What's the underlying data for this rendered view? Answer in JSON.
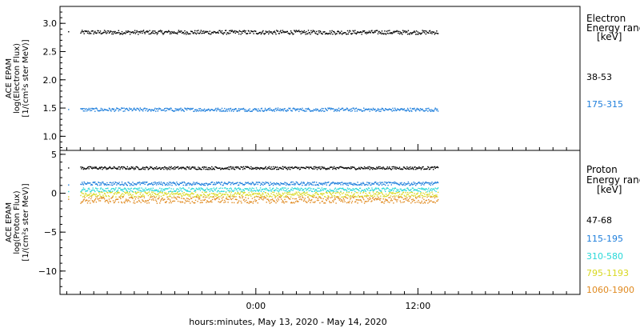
{
  "chart_data": [
    {
      "type": "scatter",
      "panel": "electron",
      "ylabel": [
        "ACE EPAM",
        "log(Electron Flux)",
        "[1/(cm²s ster MeV)]"
      ],
      "ylim": [
        0.75,
        3.3
      ],
      "yticks": [
        1.0,
        1.5,
        2.0,
        2.5,
        3.0
      ],
      "ytick_labels": [
        "1.0",
        "1.5",
        "2.0",
        "2.5",
        "3.0"
      ],
      "legend_title": [
        "Electron",
        "Energy ranges",
        "[keV]"
      ],
      "series": [
        {
          "name": "38-53",
          "color": "#000000",
          "level": 2.85,
          "jitter": 0.07
        },
        {
          "name": "175-315",
          "color": "#1f7fdc",
          "level": 1.48,
          "jitter": 0.06
        }
      ]
    },
    {
      "type": "scatter",
      "panel": "proton",
      "ylabel": [
        "ACE EPAM",
        "log(Proton Flux)",
        "[1/(cm²s ster MeV)]"
      ],
      "ylim": [
        -13,
        5.5
      ],
      "yticks": [
        -10,
        -5,
        0,
        5
      ],
      "ytick_labels": [
        "−10",
        "−5",
        "0",
        "5"
      ],
      "legend_title": [
        "Proton",
        "Energy ranges",
        "[keV]"
      ],
      "series": [
        {
          "name": "47-68",
          "color": "#000000",
          "level": 3.3,
          "jitter": 0.05
        },
        {
          "name": "115-195",
          "color": "#1f7fdc",
          "level": 1.3,
          "jitter": 0.06
        },
        {
          "name": "310-580",
          "color": "#28d8d8",
          "level": 0.5,
          "jitter": 0.07
        },
        {
          "name": "795-1193",
          "color": "#d8d820",
          "level": -0.1,
          "jitter": 0.09
        },
        {
          "name": "1060-1900",
          "color": "#e08a20",
          "level": -0.8,
          "jitter": 0.12
        }
      ]
    }
  ],
  "xaxis": {
    "label": "hours:minutes, May 13, 2020 - May 14, 2020",
    "range_hours": [
      -14.5,
      24
    ],
    "data_end_hours": 13.5,
    "major_ticks": [
      0,
      12
    ],
    "tick_labels": [
      "0:00",
      "12:00"
    ],
    "minor_step_hours": 1
  }
}
